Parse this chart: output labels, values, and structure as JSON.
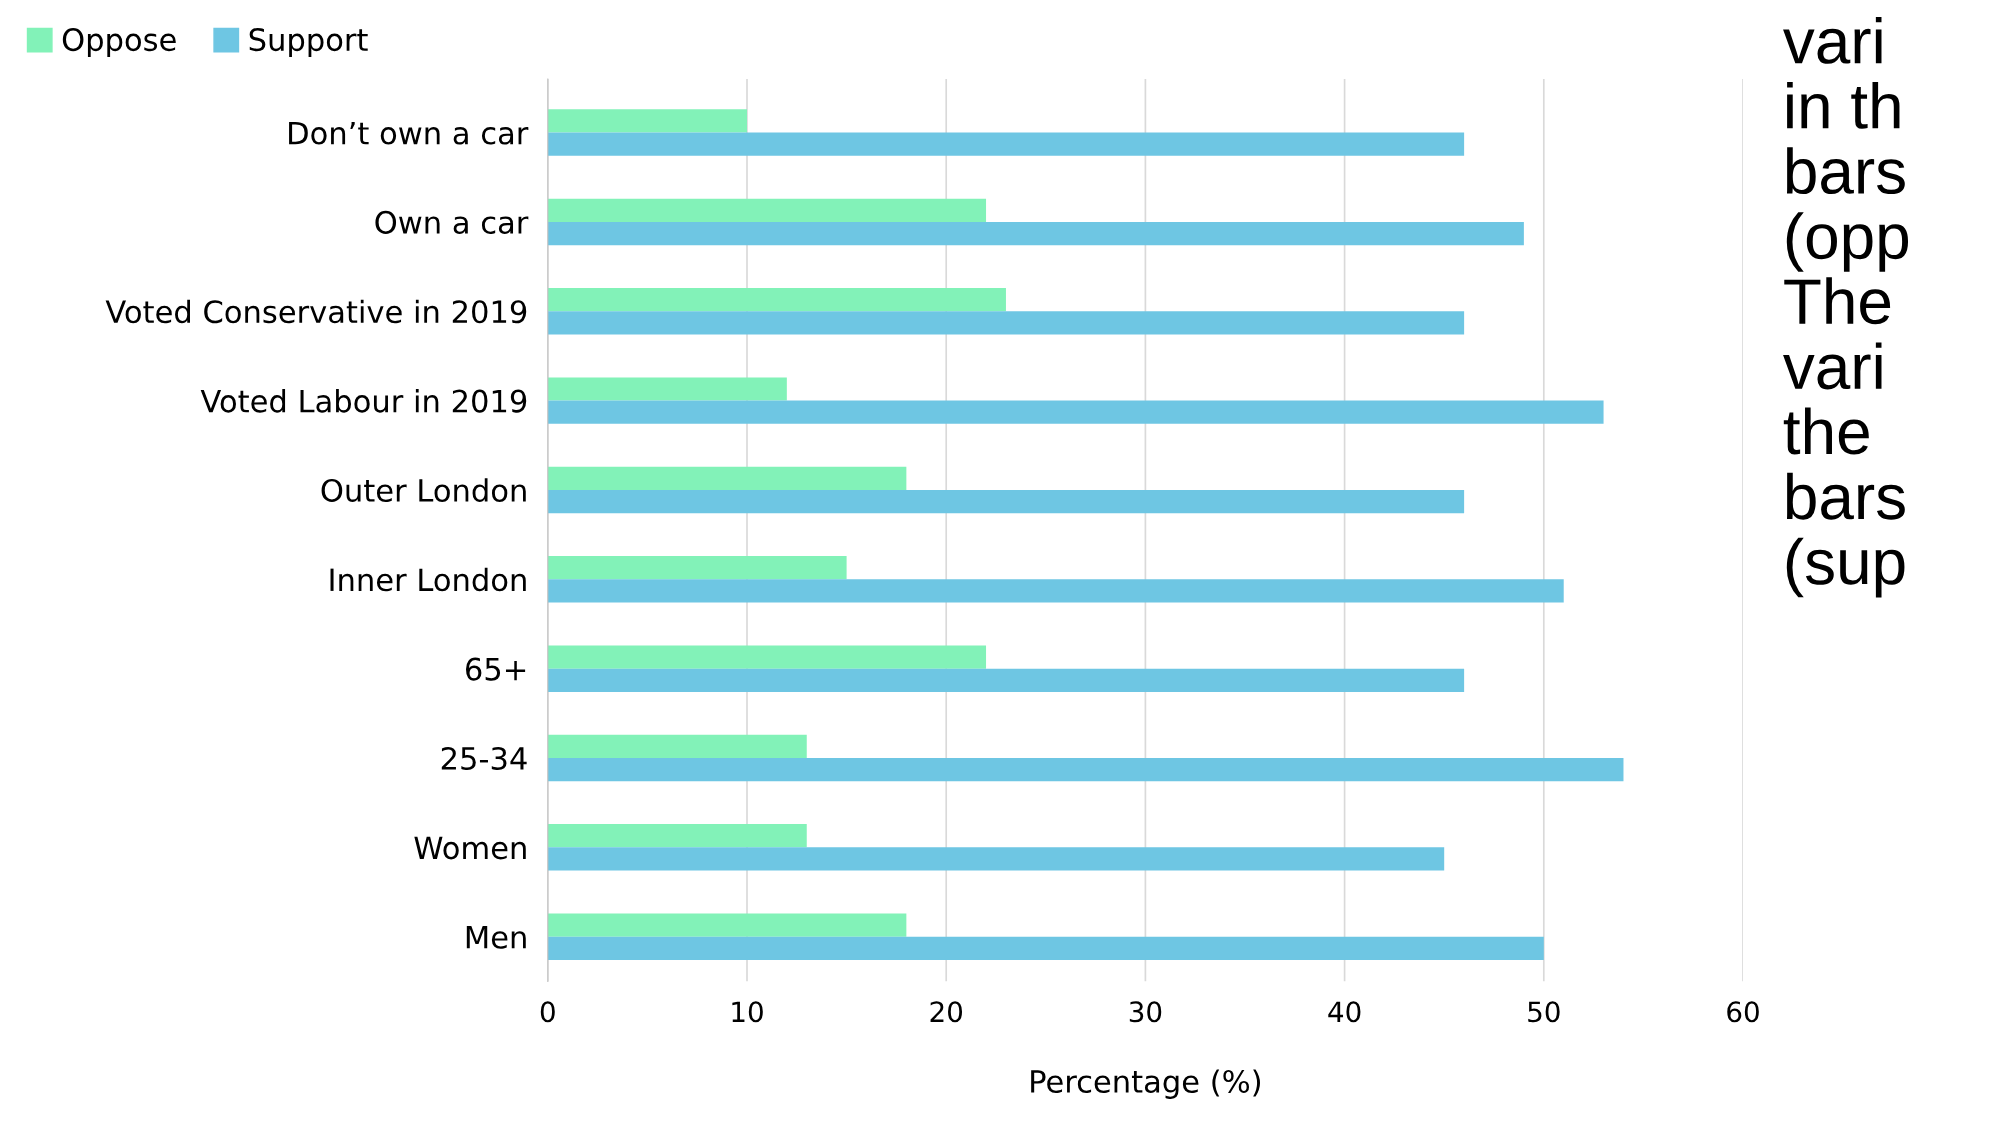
{
  "chart_data": {
    "type": "bar",
    "orientation": "horizontal",
    "xlabel": "Percentage (%)",
    "categories": [
      "Don’t own a car",
      "Own a car",
      "Voted Conservative in 2019",
      "Voted Labour in 2019",
      "Outer London",
      "Inner London",
      "65+",
      "25-34",
      "Women",
      "Men"
    ],
    "series": [
      {
        "name": "Oppose",
        "color": "#82f2b8",
        "values": [
          10,
          22,
          23,
          12,
          18,
          15,
          22,
          13,
          13,
          18
        ]
      },
      {
        "name": "Support",
        "color": "#6ec6e3",
        "values": [
          46,
          49,
          46,
          53,
          46,
          51,
          46,
          54,
          45,
          50
        ]
      }
    ],
    "xlim": [
      0,
      60
    ],
    "xticks": [
      0,
      10,
      20,
      30,
      40,
      50,
      60
    ],
    "grid": "x",
    "legend": "top left",
    "annotations": [
      "vari\nin th\nbars\n(opp\nThe\nvari\nthe\nbars\n(sup"
    ]
  }
}
